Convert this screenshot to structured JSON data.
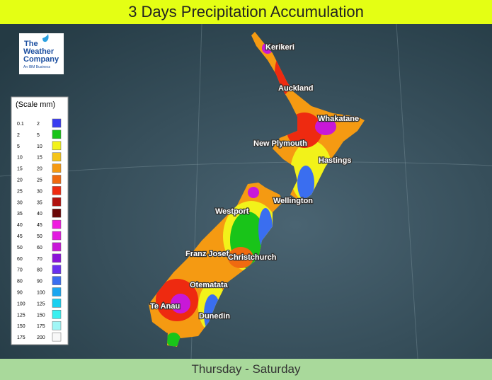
{
  "header": {
    "title": "3 Days Precipitation Accumulation"
  },
  "footer": {
    "period": "Thursday - Saturday"
  },
  "logo": {
    "line1": "The",
    "line2": "Weather",
    "line3": "Company",
    "tagline": "An IBM Business"
  },
  "legend": {
    "title": "(Scale mm)",
    "rows": [
      {
        "from": 0.1,
        "to": 2,
        "color": "#3a3cf0"
      },
      {
        "from": 2,
        "to": 5,
        "color": "#19c419"
      },
      {
        "from": 5,
        "to": 10,
        "color": "#f2f21a"
      },
      {
        "from": 10,
        "to": 15,
        "color": "#f5c51a"
      },
      {
        "from": 15,
        "to": 20,
        "color": "#f59a12"
      },
      {
        "from": 20,
        "to": 25,
        "color": "#f06a10"
      },
      {
        "from": 25,
        "to": 30,
        "color": "#ee2a10"
      },
      {
        "from": 30,
        "to": 35,
        "color": "#b0120f"
      },
      {
        "from": 35,
        "to": 40,
        "color": "#6a0808"
      },
      {
        "from": 40,
        "to": 45,
        "color": "#f01ce0"
      },
      {
        "from": 45,
        "to": 50,
        "color": "#e21ae0"
      },
      {
        "from": 50,
        "to": 60,
        "color": "#c818d8"
      },
      {
        "from": 60,
        "to": 70,
        "color": "#8a14d8"
      },
      {
        "from": 70,
        "to": 80,
        "color": "#6a30f0"
      },
      {
        "from": 80,
        "to": 90,
        "color": "#3a6ef0"
      },
      {
        "from": 90,
        "to": 100,
        "color": "#1aa6f0"
      },
      {
        "from": 100,
        "to": 125,
        "color": "#1ad0f0"
      },
      {
        "from": 125,
        "to": 150,
        "color": "#3af0f0"
      },
      {
        "from": 150,
        "to": 175,
        "color": "#a0f6f6"
      },
      {
        "from": 175,
        "to": 200,
        "color": "#f8f8f8"
      }
    ]
  },
  "cities": [
    "Kerikeri",
    "Auckland",
    "Whakatane",
    "New Plymouth",
    "Hastings",
    "Wellington",
    "Westport",
    "Franz Josef",
    "Christchurch",
    "Otematata",
    "Te Anau",
    "Dunedin"
  ]
}
